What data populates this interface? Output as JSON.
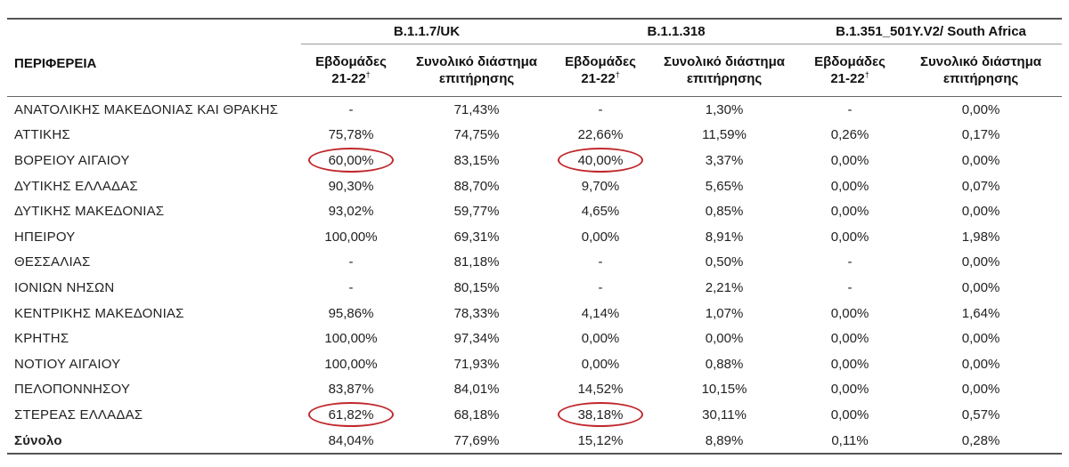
{
  "header": {
    "region_label": "ΠΕΡΙΦΕΡΕΙΑ",
    "groups": [
      "B.1.1.7/UK",
      "B.1.1.318",
      "B.1.351_501Y.V2/ South Africa"
    ],
    "sub_weeks": "Εβδομάδες 21-22",
    "sub_weeks_marker": "†",
    "sub_period_line1": "Συνολικό διάστημα",
    "sub_period_line2": "επιτήρησης"
  },
  "highlight_color": "#c0282c",
  "rows": [
    {
      "region": "ΑΝΑΤΟΛΙΚΗΣ ΜΑΚΕΔΟΝΙΑΣ ΚΑΙ ΘΡΑΚΗΣ",
      "v": [
        "-",
        "71,43%",
        "-",
        "1,30%",
        "-",
        "0,00%"
      ],
      "circled": []
    },
    {
      "region": "ΑΤΤΙΚΗΣ",
      "v": [
        "75,78%",
        "74,75%",
        "22,66%",
        "11,59%",
        "0,26%",
        "0,17%"
      ],
      "circled": []
    },
    {
      "region": "ΒΟΡΕΙΟΥ ΑΙΓΑΙΟΥ",
      "v": [
        "60,00%",
        "83,15%",
        "40,00%",
        "3,37%",
        "0,00%",
        "0,00%"
      ],
      "circled": [
        0,
        2
      ]
    },
    {
      "region": "ΔΥΤΙΚΗΣ ΕΛΛΑΔΑΣ",
      "v": [
        "90,30%",
        "88,70%",
        "9,70%",
        "5,65%",
        "0,00%",
        "0,07%"
      ],
      "circled": []
    },
    {
      "region": "ΔΥΤΙΚΗΣ ΜΑΚΕΔΟΝΙΑΣ",
      "v": [
        "93,02%",
        "59,77%",
        "4,65%",
        "0,85%",
        "0,00%",
        "0,00%"
      ],
      "circled": []
    },
    {
      "region": "ΗΠΕΙΡΟΥ",
      "v": [
        "100,00%",
        "69,31%",
        "0,00%",
        "8,91%",
        "0,00%",
        "1,98%"
      ],
      "circled": []
    },
    {
      "region": "ΘΕΣΣΑΛΙΑΣ",
      "v": [
        "-",
        "81,18%",
        "-",
        "0,50%",
        "-",
        "0,00%"
      ],
      "circled": []
    },
    {
      "region": "ΙΟΝΙΩΝ ΝΗΣΩΝ",
      "v": [
        "-",
        "80,15%",
        "-",
        "2,21%",
        "-",
        "0,00%"
      ],
      "circled": []
    },
    {
      "region": "ΚΕΝΤΡΙΚΗΣ ΜΑΚΕΔΟΝΙΑΣ",
      "v": [
        "95,86%",
        "78,33%",
        "4,14%",
        "1,07%",
        "0,00%",
        "1,64%"
      ],
      "circled": []
    },
    {
      "region": "ΚΡΗΤΗΣ",
      "v": [
        "100,00%",
        "97,34%",
        "0,00%",
        "0,00%",
        "0,00%",
        "0,00%"
      ],
      "circled": []
    },
    {
      "region": "ΝΟΤΙΟΥ ΑΙΓΑΙΟΥ",
      "v": [
        "100,00%",
        "71,93%",
        "0,00%",
        "0,88%",
        "0,00%",
        "0,00%"
      ],
      "circled": []
    },
    {
      "region": "ΠΕΛΟΠΟΝΝΗΣΟΥ",
      "v": [
        "83,87%",
        "84,01%",
        "14,52%",
        "10,15%",
        "0,00%",
        "0,00%"
      ],
      "circled": []
    },
    {
      "region": "ΣΤΕΡΕΑΣ ΕΛΛΑΔΑΣ",
      "v": [
        "61,82%",
        "68,18%",
        "38,18%",
        "30,11%",
        "0,00%",
        "0,57%"
      ],
      "circled": [
        0,
        2
      ]
    }
  ],
  "total": {
    "region": "Σύνολο",
    "v": [
      "84,04%",
      "77,69%",
      "15,12%",
      "8,89%",
      "0,11%",
      "0,28%"
    ]
  }
}
